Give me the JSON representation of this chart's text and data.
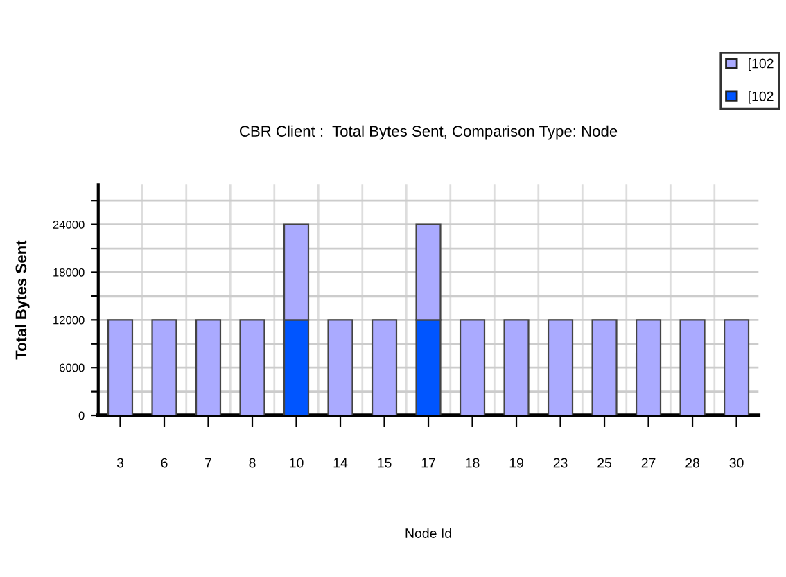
{
  "chart_data": {
    "type": "bar",
    "title": "CBR Client :  Total Bytes Sent, Comparison Type: Node",
    "xlabel": "Node Id",
    "ylabel": "Total Bytes Sent",
    "categories": [
      "3",
      "6",
      "7",
      "8",
      "10",
      "14",
      "15",
      "17",
      "18",
      "19",
      "23",
      "25",
      "27",
      "28",
      "30"
    ],
    "stacked": true,
    "series": [
      {
        "name": "[102",
        "color": "#0055ff",
        "values": [
          0,
          0,
          0,
          0,
          12000,
          0,
          0,
          12000,
          0,
          0,
          0,
          0,
          0,
          0,
          0
        ]
      },
      {
        "name": "[102",
        "color": "#aaaaff",
        "values": [
          12000,
          12000,
          12000,
          12000,
          12000,
          12000,
          12000,
          12000,
          12000,
          12000,
          12000,
          12000,
          12000,
          12000,
          12000
        ]
      }
    ],
    "ylim": [
      0,
      29000
    ],
    "yticks": [
      0,
      {
        "value": 3000,
        "label": null
      },
      6000,
      {
        "value": 9000,
        "label": null
      },
      12000,
      {
        "value": 15000,
        "label": null
      },
      18000,
      {
        "value": 21000,
        "label": null
      },
      24000,
      {
        "value": 27000,
        "label": null
      }
    ],
    "grid": true,
    "legend": "top right"
  }
}
